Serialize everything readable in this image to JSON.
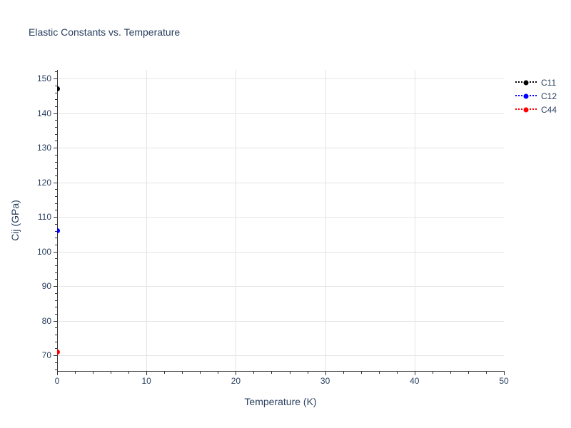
{
  "page": {
    "background": "#ffffff"
  },
  "colors": {
    "text": "#2a3f5f",
    "grid": "#e5e5e5",
    "axis": "#333333"
  },
  "chart_data": {
    "type": "scatter",
    "title": "Elastic Constants vs. Temperature",
    "xlabel": "Temperature (K)",
    "ylabel": "Cij (GPa)",
    "xlim": [
      0,
      50
    ],
    "ylim": [
      65.5,
      152.5
    ],
    "x_major_ticks": [
      0,
      10,
      20,
      30,
      40,
      50
    ],
    "y_major_ticks": [
      70,
      80,
      90,
      100,
      110,
      120,
      130,
      140,
      150
    ],
    "x_minor_step": 2,
    "y_minor_step": 2,
    "grid": "on",
    "x_gridlines_at": [
      10,
      20,
      30,
      40
    ],
    "legend_position": "top-right-outside",
    "series": [
      {
        "name": "C11",
        "color": "#000000",
        "marker": "circle",
        "line_style": "dotted",
        "x": [
          0
        ],
        "y": [
          147
        ]
      },
      {
        "name": "C12",
        "color": "#0000ff",
        "marker": "circle",
        "line_style": "dotted",
        "x": [
          0
        ],
        "y": [
          106
        ]
      },
      {
        "name": "C44",
        "color": "#ff0000",
        "marker": "circle",
        "line_style": "dotted",
        "x": [
          0
        ],
        "y": [
          71
        ]
      }
    ]
  }
}
